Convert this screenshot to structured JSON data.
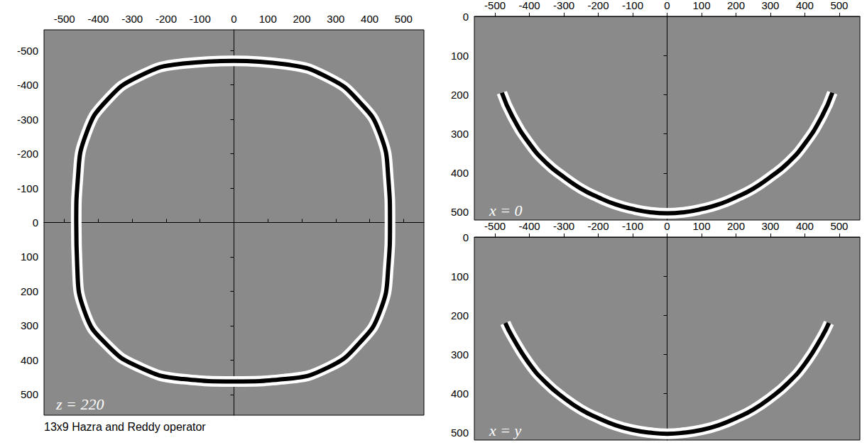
{
  "chart_data": [
    {
      "type": "line",
      "title": "z = 220",
      "annotations": [
        "13x9 Hazra and Reddy operator"
      ],
      "x": [
        0,
        150,
        280,
        370,
        430,
        455,
        460,
        455,
        430,
        370,
        280,
        150,
        0,
        -150,
        -280,
        -375,
        -440,
        -462,
        -465,
        -460,
        -435,
        -375,
        -280,
        -150,
        0
      ],
      "values": [
        -470,
        -460,
        -420,
        -350,
        -260,
        -130,
        0,
        130,
        260,
        350,
        420,
        455,
        462,
        455,
        420,
        355,
        260,
        130,
        0,
        -130,
        -260,
        -355,
        -425,
        -462,
        -470
      ],
      "color": "#000000",
      "xlim": [
        -560,
        560
      ],
      "xticks": [
        -500,
        -400,
        -300,
        -200,
        -100,
        0,
        100,
        200,
        300,
        400,
        500
      ],
      "ylim": [
        -560,
        560
      ],
      "yticks": [
        -500,
        -400,
        -300,
        -200,
        -100,
        0,
        100,
        200,
        300,
        400,
        500
      ],
      "grid": false
    },
    {
      "type": "line",
      "title": "x = 0",
      "x": [
        -480,
        -450,
        -400,
        -350,
        -300,
        -250,
        -200,
        -150,
        -100,
        -50,
        0,
        50,
        100,
        150,
        200,
        250,
        300,
        350,
        400,
        450,
        480
      ],
      "values": [
        195,
        255,
        325,
        375,
        410,
        440,
        462,
        480,
        492,
        500,
        503,
        500,
        492,
        480,
        462,
        440,
        410,
        375,
        325,
        255,
        195
      ],
      "color": "#000000",
      "xlim": [
        -560,
        560
      ],
      "xticks": [
        -500,
        -400,
        -300,
        -200,
        -100,
        0,
        100,
        200,
        300,
        400,
        500
      ],
      "ylim": [
        0,
        520
      ],
      "yticks": [
        0,
        100,
        200,
        300,
        400,
        500
      ],
      "grid": false
    },
    {
      "type": "line",
      "title": "x = y",
      "x": [
        -470,
        -450,
        -400,
        -350,
        -300,
        -250,
        -200,
        -150,
        -100,
        -50,
        0,
        50,
        100,
        150,
        200,
        250,
        300,
        350,
        400,
        450,
        470
      ],
      "values": [
        220,
        255,
        325,
        375,
        412,
        442,
        464,
        482,
        494,
        501,
        504,
        501,
        494,
        482,
        464,
        442,
        412,
        375,
        325,
        255,
        220
      ],
      "color": "#000000",
      "xlim": [
        -560,
        560
      ],
      "xticks": [
        -500,
        -400,
        -300,
        -200,
        -100,
        0,
        100,
        200,
        300,
        400,
        500
      ],
      "ylim": [
        0,
        520
      ],
      "yticks": [
        0,
        100,
        200,
        300,
        400,
        500
      ],
      "grid": false
    }
  ]
}
